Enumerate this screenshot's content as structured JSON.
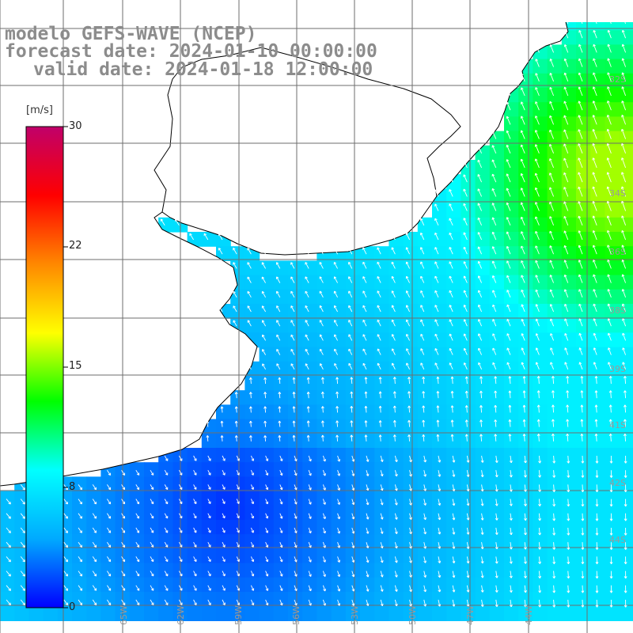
{
  "header": {
    "line1": "modelo GEFS-WAVE (NCEP)",
    "line2": "forecast date: 2024-01-10 00:00:00",
    "line3": "valid date: 2024-01-18 12:00:00"
  },
  "colorbar": {
    "unit": "[m/s]",
    "ticks": [
      "30",
      "22",
      "15",
      "8",
      "0"
    ],
    "min": 0,
    "max": 30,
    "colors": [
      "#0000ff",
      "#00aaff",
      "#00ffff",
      "#00ff00",
      "#ffff00",
      "#ff8800",
      "#ff0000",
      "#c0006a"
    ]
  },
  "map": {
    "land_color": "#ffffff",
    "coast_color": "#000000",
    "grid_color": "#6e6e6e",
    "grid": true,
    "arrow_color": "#ffffff",
    "field": "wind speed",
    "lon_labels": [
      "65W",
      "62W",
      "59W",
      "56W",
      "53W",
      "50W",
      "47W",
      "44W"
    ],
    "lat_labels": [
      "32S",
      "34S",
      "36S",
      "38S",
      "39S",
      "41S",
      "42S",
      "44S"
    ]
  }
}
